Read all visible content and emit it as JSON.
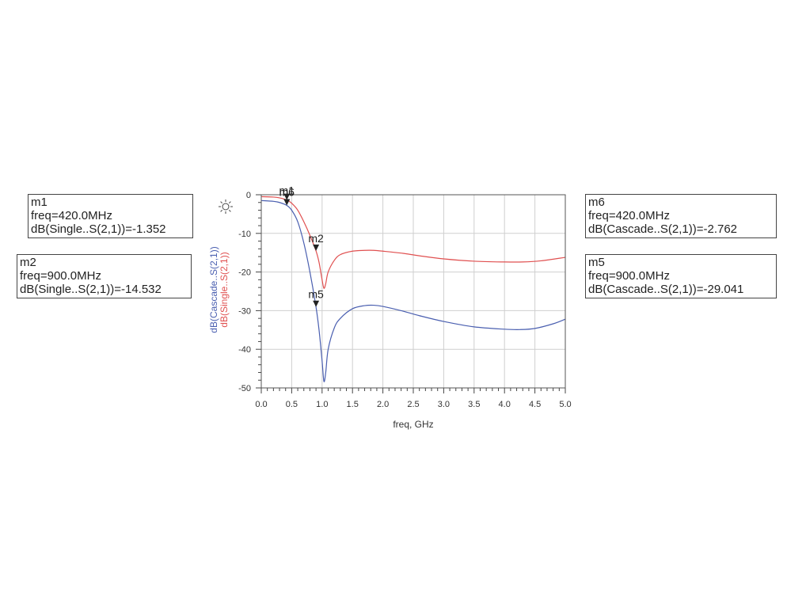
{
  "chart_data": {
    "type": "line",
    "xlabel": "freq, GHz",
    "xlim": [
      0.0,
      5.0
    ],
    "ylim": [
      -50,
      0
    ],
    "x_ticks": [
      "0.0",
      "0.5",
      "1.0",
      "1.5",
      "2.0",
      "2.5",
      "3.0",
      "3.5",
      "4.0",
      "4.5",
      "5.0"
    ],
    "y_ticks": [
      "0",
      "-10",
      "-20",
      "-30",
      "-40",
      "-50"
    ],
    "grid": true,
    "series": [
      {
        "name": "dB(Cascade..S(2,1))",
        "color": "#4a5fb0",
        "x": [
          0.0,
          0.2,
          0.3,
          0.42,
          0.5,
          0.6,
          0.7,
          0.8,
          0.9,
          0.95,
          1.0,
          1.03,
          1.06,
          1.1,
          1.2,
          1.3,
          1.5,
          1.7,
          1.85,
          2.0,
          2.3,
          2.6,
          3.0,
          3.5,
          4.0,
          4.25,
          4.5,
          4.8,
          5.0
        ],
        "y": [
          -1.5,
          -1.7,
          -2.0,
          -2.762,
          -4.0,
          -7.0,
          -12.5,
          -20.0,
          -29.041,
          -35.0,
          -43.0,
          -48.3,
          -46.0,
          -40.0,
          -34.5,
          -32.0,
          -29.5,
          -28.7,
          -28.6,
          -28.9,
          -30.0,
          -31.3,
          -32.8,
          -34.2,
          -34.8,
          -34.9,
          -34.6,
          -33.4,
          -32.2
        ]
      },
      {
        "name": "dB(Single..S(2,1))",
        "color": "#e05050",
        "x": [
          0.0,
          0.2,
          0.3,
          0.42,
          0.5,
          0.6,
          0.7,
          0.8,
          0.9,
          0.95,
          1.0,
          1.03,
          1.06,
          1.1,
          1.2,
          1.3,
          1.5,
          1.7,
          1.85,
          2.0,
          2.3,
          2.6,
          3.0,
          3.5,
          4.0,
          4.3,
          4.6,
          5.0
        ],
        "y": [
          -0.5,
          -0.6,
          -0.8,
          -1.352,
          -2.2,
          -4.0,
          -7.0,
          -10.5,
          -14.532,
          -17.5,
          -22.0,
          -24.2,
          -23.0,
          -20.0,
          -17.0,
          -15.5,
          -14.6,
          -14.4,
          -14.4,
          -14.6,
          -15.1,
          -15.8,
          -16.6,
          -17.2,
          -17.4,
          -17.4,
          -17.1,
          -16.2
        ]
      }
    ],
    "markers": [
      {
        "id": "m1",
        "x": 0.42,
        "y": -1.352,
        "series": 1
      },
      {
        "id": "m6",
        "x": 0.42,
        "y": -2.762,
        "series": 0
      },
      {
        "id": "m2",
        "x": 0.9,
        "y": -14.532,
        "series": 1
      },
      {
        "id": "m5",
        "x": 0.9,
        "y": -29.041,
        "series": 0
      }
    ]
  },
  "marker_boxes": {
    "m1": {
      "name": "m1",
      "freq": "freq=420.0MHz",
      "value": "dB(Single..S(2,1))=-1.352"
    },
    "m2": {
      "name": "m2",
      "freq": "freq=900.0MHz",
      "value": "dB(Single..S(2,1))=-14.532"
    },
    "m6": {
      "name": "m6",
      "freq": "freq=420.0MHz",
      "value": "dB(Cascade..S(2,1))=-2.762"
    },
    "m5": {
      "name": "m5",
      "freq": "freq=900.0MHz",
      "value": "dB(Cascade..S(2,1))=-29.041"
    }
  },
  "icons": {
    "plot_options": "sun-icon"
  }
}
